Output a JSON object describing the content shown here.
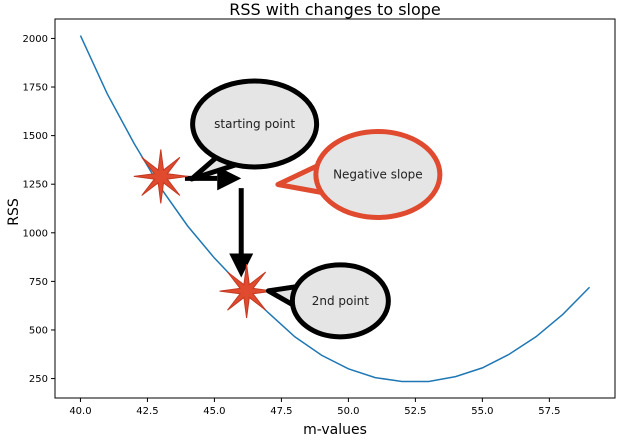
{
  "chart_data": {
    "type": "line",
    "title": "RSS with changes to slope",
    "xlabel": "m-values",
    "ylabel": "RSS",
    "xlim": [
      39.05,
      59.95
    ],
    "ylim": [
      150,
      2100
    ],
    "xticks": [
      40.0,
      42.5,
      45.0,
      47.5,
      50.0,
      52.5,
      55.0,
      57.5
    ],
    "xtick_labels": [
      "40.0",
      "42.5",
      "45.0",
      "47.5",
      "50.0",
      "52.5",
      "55.0",
      "57.5"
    ],
    "yticks": [
      250,
      500,
      750,
      1000,
      1250,
      1500,
      1750,
      2000
    ],
    "ytick_labels": [
      "250",
      "500",
      "750",
      "1000",
      "1250",
      "1500",
      "1750",
      "2000"
    ],
    "grid": false,
    "series": [
      {
        "color": "#1f77b4",
        "x": [
          40,
          41,
          42,
          43,
          44,
          45,
          46,
          47,
          48,
          49,
          50,
          51,
          52,
          53,
          54,
          55,
          56,
          57,
          58,
          59
        ],
        "y": [
          2015,
          1715,
          1460,
          1230,
          1035,
          870,
          725,
          590,
          465,
          370,
          300,
          255,
          235,
          235,
          260,
          305,
          375,
          465,
          580,
          720
        ]
      }
    ],
    "annotations": [
      {
        "kind": "star",
        "x": 43.0,
        "y": 1290,
        "color": "#e04a2f"
      },
      {
        "kind": "star",
        "x": 46.2,
        "y": 700,
        "color": "#e04a2f"
      },
      {
        "kind": "bubble",
        "text": "starting point",
        "x": 46.5,
        "y": 1560,
        "border": "#000000"
      },
      {
        "kind": "bubble",
        "text": "Negative slope",
        "x": 51.1,
        "y": 1300,
        "border": "#e04a2f"
      },
      {
        "kind": "bubble",
        "text": "2nd point",
        "x": 49.7,
        "y": 650,
        "border": "#000000"
      },
      {
        "kind": "arrow",
        "from": [
          43.9,
          1280
        ],
        "to": [
          46.0,
          1280
        ]
      },
      {
        "kind": "arrow",
        "from": [
          46.0,
          1230
        ],
        "to": [
          46.0,
          770
        ]
      }
    ]
  }
}
